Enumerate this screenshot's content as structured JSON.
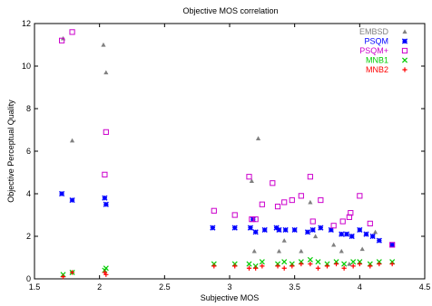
{
  "chart_data": {
    "type": "scatter",
    "title": "Objective MOS correlation",
    "xlabel": "Subjective MOS",
    "ylabel": "Objective Perceptual Quality",
    "xlim": [
      1.5,
      4.5
    ],
    "ylim": [
      0,
      12
    ],
    "xticks": [
      "1.5",
      "2",
      "2.5",
      "3",
      "3.5",
      "4",
      "4.5"
    ],
    "yticks": [
      "0",
      "2",
      "4",
      "6",
      "8",
      "10",
      "12"
    ],
    "grid": false,
    "legend_position": "top-right",
    "series": [
      {
        "name": "EMBSD",
        "color": "#808080",
        "marker": "triangle",
        "points": [
          [
            1.72,
            11.3
          ],
          [
            1.79,
            6.5
          ],
          [
            2.03,
            11.0
          ],
          [
            2.05,
            9.7
          ],
          [
            3.17,
            4.6
          ],
          [
            3.22,
            6.6
          ],
          [
            3.19,
            1.3
          ],
          [
            3.38,
            1.3
          ],
          [
            3.42,
            1.8
          ],
          [
            3.62,
            3.6
          ],
          [
            3.66,
            2.0
          ],
          [
            3.8,
            1.6
          ],
          [
            3.86,
            1.3
          ],
          [
            3.92,
            0.7
          ],
          [
            4.02,
            1.4
          ],
          [
            4.12,
            2.2
          ],
          [
            4.25,
            1.6
          ],
          [
            3.55,
            1.3
          ]
        ]
      },
      {
        "name": "PSQM",
        "color": "#0000ff",
        "marker": "star",
        "points": [
          [
            1.71,
            4.0
          ],
          [
            1.79,
            3.7
          ],
          [
            2.04,
            3.8
          ],
          [
            2.05,
            3.5
          ],
          [
            2.87,
            2.4
          ],
          [
            3.04,
            2.4
          ],
          [
            3.16,
            2.4
          ],
          [
            3.18,
            2.8
          ],
          [
            3.2,
            2.2
          ],
          [
            3.27,
            2.3
          ],
          [
            3.36,
            2.4
          ],
          [
            3.38,
            2.3
          ],
          [
            3.43,
            2.3
          ],
          [
            3.5,
            2.3
          ],
          [
            3.6,
            2.2
          ],
          [
            3.64,
            2.3
          ],
          [
            3.7,
            2.4
          ],
          [
            3.78,
            2.3
          ],
          [
            3.86,
            2.1
          ],
          [
            3.9,
            2.1
          ],
          [
            3.94,
            2.0
          ],
          [
            4.0,
            2.3
          ],
          [
            4.05,
            2.1
          ],
          [
            4.1,
            2.0
          ],
          [
            4.15,
            1.8
          ],
          [
            4.25,
            1.6
          ]
        ]
      },
      {
        "name": "PSQM+",
        "color": "#cc00cc",
        "marker": "square",
        "points": [
          [
            1.71,
            11.2
          ],
          [
            1.79,
            11.6
          ],
          [
            2.04,
            4.9
          ],
          [
            2.05,
            6.9
          ],
          [
            2.88,
            3.2
          ],
          [
            3.04,
            3.0
          ],
          [
            3.15,
            4.8
          ],
          [
            3.17,
            2.8
          ],
          [
            3.2,
            2.8
          ],
          [
            3.25,
            3.5
          ],
          [
            3.33,
            4.5
          ],
          [
            3.37,
            3.4
          ],
          [
            3.42,
            3.6
          ],
          [
            3.48,
            3.7
          ],
          [
            3.55,
            3.9
          ],
          [
            3.62,
            4.8
          ],
          [
            3.64,
            2.7
          ],
          [
            3.7,
            3.7
          ],
          [
            3.8,
            2.5
          ],
          [
            3.87,
            2.7
          ],
          [
            3.92,
            2.9
          ],
          [
            3.93,
            3.1
          ],
          [
            4.0,
            3.9
          ],
          [
            4.08,
            2.6
          ],
          [
            4.25,
            1.6
          ]
        ]
      },
      {
        "name": "MNB1",
        "color": "#00cc00",
        "marker": "x",
        "points": [
          [
            1.72,
            0.2
          ],
          [
            1.79,
            0.3
          ],
          [
            2.04,
            0.4
          ],
          [
            2.05,
            0.5
          ],
          [
            2.88,
            0.7
          ],
          [
            3.04,
            0.7
          ],
          [
            3.15,
            0.7
          ],
          [
            3.2,
            0.6
          ],
          [
            3.25,
            0.8
          ],
          [
            3.37,
            0.7
          ],
          [
            3.42,
            0.8
          ],
          [
            3.48,
            0.7
          ],
          [
            3.55,
            0.8
          ],
          [
            3.62,
            0.9
          ],
          [
            3.68,
            0.8
          ],
          [
            3.75,
            0.7
          ],
          [
            3.82,
            0.8
          ],
          [
            3.88,
            0.7
          ],
          [
            3.95,
            0.8
          ],
          [
            4.0,
            0.8
          ],
          [
            4.08,
            0.7
          ],
          [
            4.15,
            0.8
          ],
          [
            4.25,
            0.8
          ]
        ]
      },
      {
        "name": "MNB2",
        "color": "#ff0000",
        "marker": "plus",
        "points": [
          [
            1.72,
            0.1
          ],
          [
            1.79,
            0.3
          ],
          [
            2.04,
            0.3
          ],
          [
            2.05,
            0.2
          ],
          [
            2.88,
            0.6
          ],
          [
            3.04,
            0.6
          ],
          [
            3.15,
            0.5
          ],
          [
            3.2,
            0.5
          ],
          [
            3.25,
            0.6
          ],
          [
            3.37,
            0.6
          ],
          [
            3.42,
            0.5
          ],
          [
            3.48,
            0.6
          ],
          [
            3.55,
            0.7
          ],
          [
            3.62,
            0.7
          ],
          [
            3.68,
            0.5
          ],
          [
            3.75,
            0.6
          ],
          [
            3.82,
            0.7
          ],
          [
            3.88,
            0.5
          ],
          [
            3.95,
            0.6
          ],
          [
            4.0,
            0.7
          ],
          [
            4.08,
            0.6
          ],
          [
            4.15,
            0.7
          ],
          [
            4.25,
            0.7
          ]
        ]
      }
    ]
  }
}
